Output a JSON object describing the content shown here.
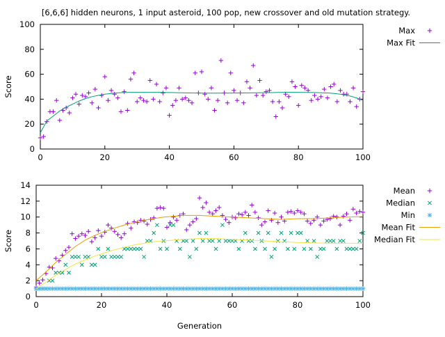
{
  "figure": {
    "title": "[6,6,6] hidden neurons, 1 input asteroid, 100 pop, new crossover and old mutation strategy."
  },
  "chart_data": [
    {
      "type": "scatter",
      "title": "[6,6,6] hidden neurons, 1 input asteroid, 100 pop, new crossover and old mutation strategy.",
      "xlabel": "",
      "ylabel": "Score",
      "xlim": [
        0,
        100
      ],
      "ylim": [
        0,
        100
      ],
      "xticks": [
        "0",
        "20",
        "40",
        "60",
        "80",
        "100"
      ],
      "yticks": [
        "0",
        "20",
        "40",
        "60",
        "80",
        "100"
      ],
      "legend": "top-right",
      "series": [
        {
          "name": "Max",
          "kind": "points",
          "marker": "plus",
          "color": "#9400d3",
          "x": [
            0,
            1,
            2,
            3,
            4,
            5,
            6,
            7,
            8,
            9,
            10,
            11,
            12,
            13,
            14,
            15,
            16,
            17,
            18,
            19,
            20,
            21,
            22,
            23,
            24,
            25,
            26,
            27,
            28,
            29,
            30,
            31,
            32,
            33,
            34,
            35,
            36,
            37,
            38,
            39,
            40,
            41,
            42,
            43,
            44,
            45,
            46,
            47,
            48,
            49,
            50,
            51,
            52,
            53,
            54,
            55,
            56,
            57,
            58,
            59,
            60,
            61,
            62,
            63,
            64,
            65,
            66,
            67,
            68,
            69,
            70,
            71,
            72,
            73,
            74,
            75,
            76,
            77,
            78,
            79,
            80,
            81,
            82,
            83,
            84,
            85,
            86,
            87,
            88,
            89,
            90,
            91,
            92,
            93,
            94,
            95,
            96,
            97,
            98,
            99,
            100
          ],
          "y": [
            9,
            10,
            22,
            30,
            30,
            39,
            23,
            31,
            33,
            29,
            41,
            44,
            36,
            43,
            42,
            45,
            37,
            48,
            33,
            43,
            58,
            39,
            47,
            44,
            41,
            30,
            46,
            31,
            56,
            61,
            38,
            41,
            39,
            38,
            55,
            40,
            52,
            38,
            45,
            49,
            27,
            35,
            39,
            49,
            40,
            41,
            39,
            37,
            61,
            45,
            62,
            44,
            40,
            49,
            31,
            39,
            71,
            45,
            37,
            61,
            47,
            39,
            45,
            37,
            54,
            49,
            67,
            43,
            55,
            43,
            46,
            47,
            38,
            26,
            38,
            33,
            44,
            42,
            54,
            50,
            35,
            51,
            49,
            47,
            39,
            43,
            40,
            42,
            48,
            41,
            50,
            52,
            38,
            47,
            44,
            44,
            38,
            49,
            34,
            40,
            46
          ]
        },
        {
          "name": "Max Fit",
          "kind": "line",
          "color": "#009e73",
          "x": [
            0,
            2,
            4,
            6,
            8,
            10,
            12,
            14,
            16,
            18,
            20,
            22,
            24,
            26,
            28,
            30,
            32,
            34,
            36,
            38,
            40,
            45,
            50,
            55,
            60,
            65,
            70,
            75,
            80,
            85,
            90,
            93,
            96,
            98,
            100
          ],
          "y": [
            13,
            22.5,
            26.5,
            30.5,
            33.5,
            36,
            38.5,
            40.5,
            42,
            43,
            44,
            44.5,
            45,
            45.3,
            45.5,
            45.5,
            45.5,
            45.5,
            45.5,
            45.4,
            45.3,
            45,
            44.8,
            44.8,
            44.9,
            45,
            45.2,
            45.5,
            45.5,
            45.3,
            44.8,
            44,
            42.5,
            41,
            39
          ]
        }
      ]
    },
    {
      "type": "scatter",
      "title": "",
      "xlabel": "Generation",
      "ylabel": "Score",
      "xlim": [
        0,
        100
      ],
      "ylim": [
        0,
        14
      ],
      "xticks": [
        "0",
        "20",
        "40",
        "60",
        "80",
        "100"
      ],
      "yticks": [
        "0",
        "2",
        "4",
        "6",
        "8",
        "10",
        "12",
        "14"
      ],
      "legend": "top-right",
      "series": [
        {
          "name": "Mean",
          "kind": "points",
          "marker": "plus",
          "color": "#9400d3",
          "x": [
            0,
            1,
            2,
            3,
            4,
            5,
            6,
            7,
            8,
            9,
            10,
            11,
            12,
            13,
            14,
            15,
            16,
            17,
            18,
            19,
            20,
            21,
            22,
            23,
            24,
            25,
            26,
            27,
            28,
            29,
            30,
            31,
            32,
            33,
            34,
            35,
            36,
            37,
            38,
            39,
            40,
            41,
            42,
            43,
            44,
            45,
            46,
            47,
            48,
            49,
            50,
            51,
            52,
            53,
            54,
            55,
            56,
            57,
            58,
            59,
            60,
            61,
            62,
            63,
            64,
            65,
            66,
            67,
            68,
            69,
            70,
            71,
            72,
            73,
            74,
            75,
            76,
            77,
            78,
            79,
            80,
            81,
            82,
            83,
            84,
            85,
            86,
            87,
            88,
            89,
            90,
            91,
            92,
            93,
            94,
            95,
            96,
            97,
            98,
            99,
            100
          ],
          "y": [
            1.2,
            1.7,
            2.1,
            2.9,
            3.7,
            3.6,
            4.8,
            4.5,
            5.2,
            5.8,
            6.2,
            7.9,
            7.3,
            7.6,
            7.9,
            7.7,
            8.2,
            6.9,
            7.4,
            8.3,
            7.6,
            8.1,
            9.0,
            8.6,
            8.2,
            7.8,
            7.4,
            7.9,
            9.2,
            8.6,
            9.4,
            9.3,
            9.6,
            9.5,
            9.1,
            9.7,
            9.9,
            11.1,
            11.2,
            11.1,
            8.7,
            9.3,
            10.0,
            9.6,
            10.2,
            10.4,
            8.4,
            9.0,
            9.4,
            9.8,
            12.4,
            11.2,
            11.8,
            10.6,
            10.4,
            10.8,
            11.2,
            10.2,
            9.7,
            9.3,
            10.0,
            9.9,
            10.4,
            10.3,
            10.6,
            10.2,
            11.5,
            10.6,
            9.9,
            9.0,
            9.4,
            10.8,
            9.6,
            10.5,
            9.3,
            10.0,
            9.5,
            10.6,
            10.7,
            10.5,
            10.8,
            10.6,
            10.4,
            9.5,
            9.2,
            9.6,
            10.0,
            9.0,
            9.5,
            9.7,
            9.8,
            10.1,
            10.0,
            9.0,
            10.1,
            10.4,
            9.6,
            11.0,
            10.5,
            10.7,
            10.6
          ]
        },
        {
          "name": "Median",
          "kind": "points",
          "marker": "x",
          "color": "#009e73",
          "x": [
            0,
            1,
            2,
            3,
            4,
            5,
            6,
            7,
            8,
            9,
            10,
            11,
            12,
            13,
            14,
            15,
            16,
            17,
            18,
            19,
            20,
            21,
            22,
            23,
            24,
            25,
            26,
            27,
            28,
            29,
            30,
            31,
            32,
            33,
            34,
            35,
            36,
            37,
            38,
            39,
            40,
            41,
            42,
            43,
            44,
            45,
            46,
            47,
            48,
            49,
            50,
            51,
            52,
            53,
            54,
            55,
            56,
            57,
            58,
            59,
            60,
            61,
            62,
            63,
            64,
            65,
            66,
            67,
            68,
            69,
            70,
            71,
            72,
            73,
            74,
            75,
            76,
            77,
            78,
            79,
            80,
            81,
            82,
            83,
            84,
            85,
            86,
            87,
            88,
            89,
            90,
            91,
            92,
            93,
            94,
            95,
            96,
            97,
            98,
            99,
            100
          ],
          "y": [
            1,
            1,
            1,
            1,
            2,
            2,
            3,
            3,
            3,
            4,
            3,
            5,
            5,
            5,
            4,
            5,
            5,
            4,
            4,
            6,
            5,
            5,
            6,
            5,
            5,
            5,
            5,
            6,
            6,
            6,
            6,
            6,
            6,
            5,
            7,
            7,
            8,
            9,
            6,
            7,
            6,
            9,
            9,
            7,
            6,
            7,
            7,
            5,
            7,
            6,
            8,
            7,
            8,
            7,
            7,
            6,
            7,
            9,
            7,
            7,
            7,
            7,
            6,
            7,
            8,
            7,
            7,
            6,
            8,
            7,
            6,
            8,
            5,
            6,
            7,
            8,
            7,
            6,
            8,
            6,
            8,
            8,
            6,
            7,
            6,
            7,
            5,
            6,
            6,
            7,
            7,
            7,
            6,
            7,
            7,
            6,
            6,
            6,
            6,
            7,
            8
          ]
        },
        {
          "name": "Min",
          "kind": "points",
          "marker": "star",
          "color": "#56b4e9",
          "x": [
            0,
            1,
            2,
            3,
            4,
            5,
            6,
            7,
            8,
            9,
            10,
            11,
            12,
            13,
            14,
            15,
            16,
            17,
            18,
            19,
            20,
            21,
            22,
            23,
            24,
            25,
            26,
            27,
            28,
            29,
            30,
            31,
            32,
            33,
            34,
            35,
            36,
            37,
            38,
            39,
            40,
            41,
            42,
            43,
            44,
            45,
            46,
            47,
            48,
            49,
            50,
            51,
            52,
            53,
            54,
            55,
            56,
            57,
            58,
            59,
            60,
            61,
            62,
            63,
            64,
            65,
            66,
            67,
            68,
            69,
            70,
            71,
            72,
            73,
            74,
            75,
            76,
            77,
            78,
            79,
            80,
            81,
            82,
            83,
            84,
            85,
            86,
            87,
            88,
            89,
            90,
            91,
            92,
            93,
            94,
            95,
            96,
            97,
            98,
            99,
            100
          ],
          "y": [
            1,
            1,
            1,
            1,
            1,
            1,
            1,
            1,
            1,
            1,
            1,
            1,
            1,
            1,
            1,
            1,
            1,
            1,
            1,
            1,
            1,
            1,
            1,
            1,
            1,
            1,
            1,
            1,
            1,
            1,
            1,
            1,
            1,
            1,
            1,
            1,
            1,
            1,
            1,
            1,
            1,
            1,
            1,
            1,
            1,
            1,
            1,
            1,
            1,
            1,
            1,
            1,
            1,
            1,
            1,
            1,
            1,
            1,
            1,
            1,
            1,
            1,
            1,
            1,
            1,
            1,
            1,
            1,
            1,
            1,
            1,
            1,
            1,
            1,
            1,
            1,
            1,
            1,
            1,
            1,
            1,
            1,
            1,
            1,
            1,
            1,
            1,
            1,
            1,
            1,
            1,
            1,
            1,
            1,
            1,
            1,
            1,
            1,
            1,
            1,
            1
          ]
        },
        {
          "name": "Mean Fit",
          "kind": "line",
          "color": "#e69f00",
          "x": [
            0,
            3,
            6,
            9,
            12,
            15,
            18,
            21,
            24,
            27,
            30,
            33,
            36,
            39,
            42,
            45,
            50,
            55,
            60,
            65,
            70,
            75,
            80,
            85,
            90,
            93,
            96,
            100
          ],
          "y": [
            2.0,
            3.1,
            4.3,
            5.3,
            6.3,
            7.1,
            7.7,
            8.2,
            8.6,
            9.0,
            9.3,
            9.6,
            9.8,
            10.0,
            10.1,
            10.2,
            10.2,
            10.1,
            10.0,
            9.9,
            9.8,
            9.7,
            9.8,
            9.8,
            9.9,
            9.95,
            10.0,
            10.05
          ]
        },
        {
          "name": "Median Fit",
          "kind": "line",
          "color": "#f0e442",
          "x": [
            0,
            3,
            6,
            9,
            12,
            15,
            18,
            21,
            24,
            27,
            30,
            33,
            36,
            39,
            42,
            45,
            50,
            55,
            60,
            65,
            70,
            75,
            80,
            85,
            90,
            93,
            96,
            100
          ],
          "y": [
            1.0,
            1.8,
            2.7,
            3.4,
            4.1,
            4.6,
            5.1,
            5.5,
            5.9,
            6.2,
            6.5,
            6.7,
            6.9,
            7.0,
            7.1,
            7.2,
            7.3,
            7.3,
            7.2,
            7.1,
            7.0,
            6.9,
            6.8,
            6.75,
            6.7,
            6.7,
            6.7,
            6.7
          ]
        }
      ]
    }
  ]
}
